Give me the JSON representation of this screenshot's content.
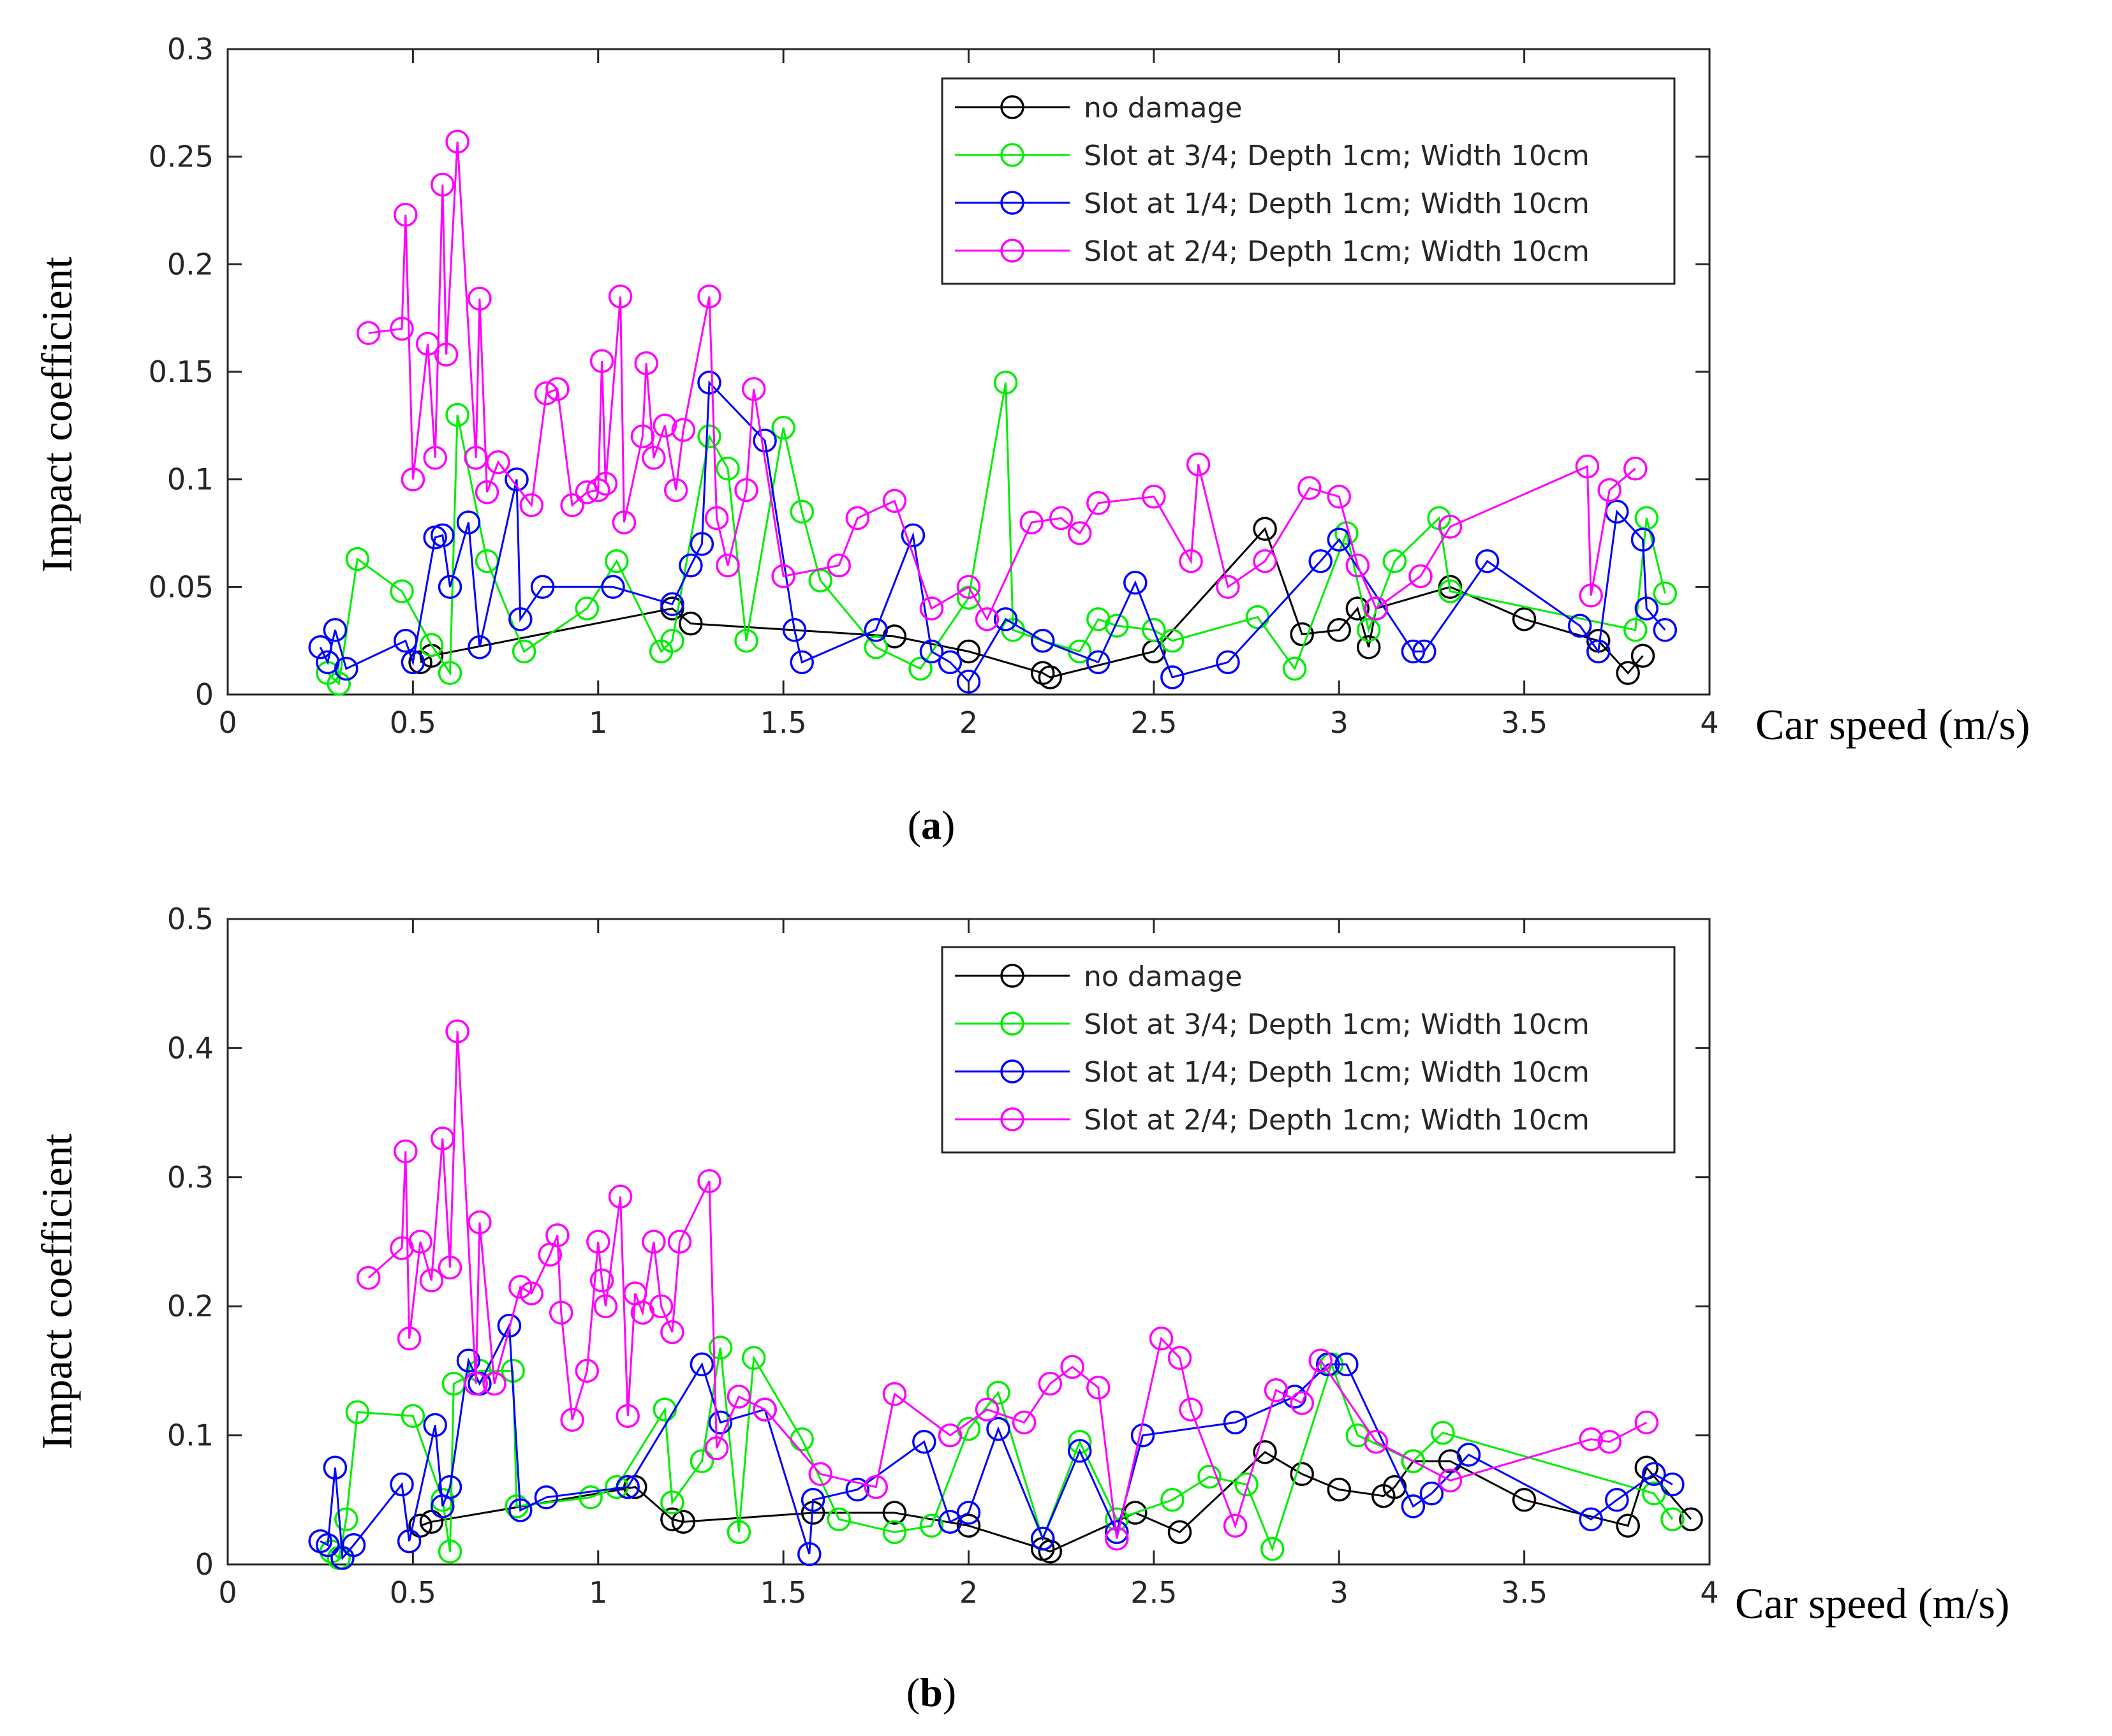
{
  "chart_data": [
    {
      "type": "line",
      "panel_label": "a",
      "xlabel": "Car speed (m/s)",
      "ylabel": "Impact coefficient",
      "xlim": [
        0,
        4
      ],
      "ylim": [
        0,
        0.3
      ],
      "xticks": [
        "0",
        "0.5",
        "1",
        "1.5",
        "2",
        "2.5",
        "3",
        "3.5",
        "4"
      ],
      "yticks": [
        "0",
        "0.05",
        "0.1",
        "0.15",
        "0.2",
        "0.25",
        "0.3"
      ],
      "legend_position": "top-right",
      "series": [
        {
          "name": "no damage",
          "color": "#000000",
          "x": [
            0.52,
            0.55,
            1.2,
            1.25,
            1.8,
            2.0,
            2.2,
            2.22,
            2.5,
            2.8,
            2.9,
            3.0,
            3.05,
            3.08,
            3.1,
            3.3,
            3.5,
            3.7,
            3.78,
            3.82
          ],
          "y": [
            0.015,
            0.018,
            0.04,
            0.033,
            0.027,
            0.02,
            0.01,
            0.008,
            0.02,
            0.077,
            0.028,
            0.03,
            0.04,
            0.022,
            0.04,
            0.05,
            0.035,
            0.025,
            0.01,
            0.018
          ]
        },
        {
          "name": "Slot at 3/4; Depth 1cm; Width 10cm",
          "color": "#00ee00",
          "x": [
            0.27,
            0.3,
            0.35,
            0.47,
            0.55,
            0.6,
            0.62,
            0.7,
            0.8,
            0.97,
            1.05,
            1.17,
            1.2,
            1.3,
            1.35,
            1.4,
            1.5,
            1.55,
            1.6,
            1.75,
            1.87,
            2.0,
            2.1,
            2.12,
            2.2,
            2.3,
            2.35,
            2.4,
            2.5,
            2.55,
            2.78,
            2.88,
            3.02,
            3.08,
            3.15,
            3.27,
            3.3,
            3.8,
            3.83,
            3.88
          ],
          "y": [
            0.01,
            0.005,
            0.063,
            0.048,
            0.023,
            0.01,
            0.13,
            0.062,
            0.02,
            0.04,
            0.062,
            0.02,
            0.025,
            0.12,
            0.105,
            0.025,
            0.124,
            0.085,
            0.053,
            0.022,
            0.012,
            0.045,
            0.145,
            0.03,
            0.025,
            0.02,
            0.035,
            0.032,
            0.03,
            0.025,
            0.036,
            0.012,
            0.075,
            0.03,
            0.062,
            0.082,
            0.048,
            0.03,
            0.082,
            0.047
          ]
        },
        {
          "name": "Slot at 1/4; Depth 1cm; Width 10cm",
          "color": "#0000ff",
          "x": [
            0.25,
            0.27,
            0.29,
            0.32,
            0.48,
            0.5,
            0.56,
            0.58,
            0.6,
            0.65,
            0.68,
            0.78,
            0.79,
            0.85,
            1.04,
            1.2,
            1.25,
            1.28,
            1.3,
            1.45,
            1.53,
            1.55,
            1.75,
            1.85,
            1.9,
            1.95,
            2.0,
            2.1,
            2.2,
            2.35,
            2.45,
            2.55,
            2.7,
            2.95,
            3.0,
            3.2,
            3.23,
            3.4,
            3.65,
            3.7,
            3.75,
            3.82,
            3.83,
            3.88
          ],
          "y": [
            0.022,
            0.015,
            0.03,
            0.012,
            0.025,
            0.015,
            0.073,
            0.074,
            0.05,
            0.08,
            0.022,
            0.1,
            0.035,
            0.05,
            0.05,
            0.042,
            0.06,
            0.07,
            0.145,
            0.118,
            0.03,
            0.015,
            0.03,
            0.074,
            0.02,
            0.015,
            0.006,
            0.035,
            0.025,
            0.015,
            0.052,
            0.008,
            0.015,
            0.062,
            0.072,
            0.02,
            0.02,
            0.062,
            0.032,
            0.02,
            0.085,
            0.072,
            0.04,
            0.03
          ]
        },
        {
          "name": "Slot at 2/4; Depth 1cm; Width 10cm",
          "color": "#ff00ff",
          "x": [
            0.38,
            0.47,
            0.48,
            0.5,
            0.54,
            0.56,
            0.58,
            0.59,
            0.62,
            0.67,
            0.68,
            0.7,
            0.73,
            0.82,
            0.86,
            0.89,
            0.93,
            0.97,
            1.0,
            1.01,
            1.02,
            1.06,
            1.07,
            1.12,
            1.13,
            1.15,
            1.18,
            1.21,
            1.23,
            1.3,
            1.32,
            1.35,
            1.4,
            1.42,
            1.5,
            1.65,
            1.7,
            1.8,
            1.9,
            2.0,
            2.05,
            2.17,
            2.25,
            2.3,
            2.35,
            2.5,
            2.6,
            2.62,
            2.7,
            2.8,
            2.92,
            3.0,
            3.05,
            3.1,
            3.22,
            3.3,
            3.67,
            3.68,
            3.73,
            3.8
          ],
          "y": [
            0.168,
            0.17,
            0.223,
            0.1,
            0.163,
            0.11,
            0.237,
            0.158,
            0.257,
            0.11,
            0.184,
            0.094,
            0.108,
            0.088,
            0.14,
            0.142,
            0.088,
            0.094,
            0.095,
            0.155,
            0.098,
            0.185,
            0.08,
            0.12,
            0.154,
            0.11,
            0.125,
            0.095,
            0.123,
            0.185,
            0.082,
            0.06,
            0.095,
            0.142,
            0.055,
            0.06,
            0.082,
            0.09,
            0.04,
            0.05,
            0.035,
            0.08,
            0.082,
            0.075,
            0.089,
            0.092,
            0.062,
            0.107,
            0.05,
            0.062,
            0.096,
            0.092,
            0.06,
            0.04,
            0.055,
            0.078,
            0.106,
            0.046,
            0.095,
            0.105
          ]
        }
      ]
    },
    {
      "type": "line",
      "panel_label": "b",
      "xlabel": "Car speed (m/s)",
      "ylabel": "Impact coefficient",
      "xlim": [
        0,
        4
      ],
      "ylim": [
        0,
        0.5
      ],
      "xticks": [
        "0",
        "0.5",
        "1",
        "1.5",
        "2",
        "2.5",
        "3",
        "3.5",
        "4"
      ],
      "yticks": [
        "0",
        "0.1",
        "0.2",
        "0.3",
        "0.4",
        "0.5"
      ],
      "legend_position": "top-right",
      "series": [
        {
          "name": "no damage",
          "color": "#000000",
          "x": [
            0.52,
            0.55,
            1.1,
            1.2,
            1.23,
            1.58,
            1.8,
            2.0,
            2.2,
            2.22,
            2.45,
            2.57,
            2.8,
            2.9,
            3.0,
            3.12,
            3.15,
            3.2,
            3.3,
            3.5,
            3.78,
            3.83,
            3.95
          ],
          "y": [
            0.03,
            0.033,
            0.06,
            0.035,
            0.033,
            0.04,
            0.04,
            0.03,
            0.012,
            0.01,
            0.04,
            0.025,
            0.087,
            0.07,
            0.058,
            0.053,
            0.06,
            0.08,
            0.08,
            0.05,
            0.03,
            0.075,
            0.035
          ]
        },
        {
          "name": "Slot at 3/4; Depth 1cm; Width 10cm",
          "color": "#00ee00",
          "x": [
            0.28,
            0.3,
            0.32,
            0.35,
            0.5,
            0.58,
            0.6,
            0.61,
            0.68,
            0.77,
            0.78,
            0.98,
            1.05,
            1.18,
            1.2,
            1.28,
            1.33,
            1.38,
            1.42,
            1.55,
            1.65,
            1.8,
            1.9,
            2.0,
            2.08,
            2.2,
            2.3,
            2.4,
            2.55,
            2.65,
            2.75,
            2.82,
            2.98,
            3.05,
            3.2,
            3.28,
            3.85,
            3.9
          ],
          "y": [
            0.01,
            0.005,
            0.035,
            0.118,
            0.115,
            0.05,
            0.01,
            0.14,
            0.15,
            0.15,
            0.045,
            0.052,
            0.06,
            0.12,
            0.048,
            0.08,
            0.168,
            0.025,
            0.16,
            0.097,
            0.035,
            0.025,
            0.03,
            0.105,
            0.133,
            0.02,
            0.095,
            0.035,
            0.05,
            0.068,
            0.062,
            0.012,
            0.155,
            0.1,
            0.08,
            0.102,
            0.055,
            0.035
          ]
        },
        {
          "name": "Slot at 1/4; Depth 1cm; Width 10cm",
          "color": "#0000ff",
          "x": [
            0.25,
            0.27,
            0.29,
            0.31,
            0.34,
            0.47,
            0.49,
            0.56,
            0.58,
            0.6,
            0.65,
            0.68,
            0.76,
            0.79,
            0.86,
            1.08,
            1.28,
            1.33,
            1.45,
            1.57,
            1.58,
            1.7,
            1.88,
            1.95,
            2.0,
            2.08,
            2.2,
            2.3,
            2.4,
            2.47,
            2.72,
            2.88,
            2.97,
            3.02,
            3.2,
            3.25,
            3.35,
            3.68,
            3.75,
            3.85,
            3.9
          ],
          "y": [
            0.018,
            0.015,
            0.075,
            0.005,
            0.015,
            0.062,
            0.018,
            0.108,
            0.045,
            0.06,
            0.158,
            0.14,
            0.185,
            0.042,
            0.052,
            0.06,
            0.155,
            0.11,
            0.12,
            0.008,
            0.05,
            0.058,
            0.095,
            0.033,
            0.04,
            0.105,
            0.02,
            0.088,
            0.025,
            0.1,
            0.11,
            0.13,
            0.155,
            0.155,
            0.045,
            0.055,
            0.085,
            0.035,
            0.05,
            0.07,
            0.062
          ]
        },
        {
          "name": "Slot at 2/4; Depth 1cm; Width 10cm",
          "color": "#ff00ff",
          "x": [
            0.38,
            0.47,
            0.48,
            0.49,
            0.52,
            0.55,
            0.58,
            0.6,
            0.62,
            0.67,
            0.68,
            0.72,
            0.79,
            0.82,
            0.87,
            0.89,
            0.9,
            0.93,
            0.97,
            1.0,
            1.01,
            1.02,
            1.06,
            1.08,
            1.1,
            1.12,
            1.15,
            1.17,
            1.2,
            1.22,
            1.3,
            1.32,
            1.38,
            1.45,
            1.6,
            1.75,
            1.8,
            1.95,
            2.05,
            2.15,
            2.22,
            2.28,
            2.35,
            2.4,
            2.52,
            2.57,
            2.6,
            2.72,
            2.83,
            2.9,
            2.95,
            3.1,
            3.3,
            3.68,
            3.73,
            3.83
          ],
          "y": [
            0.222,
            0.245,
            0.32,
            0.175,
            0.25,
            0.22,
            0.33,
            0.23,
            0.413,
            0.14,
            0.265,
            0.14,
            0.215,
            0.21,
            0.24,
            0.255,
            0.195,
            0.112,
            0.15,
            0.25,
            0.22,
            0.2,
            0.285,
            0.115,
            0.21,
            0.195,
            0.25,
            0.2,
            0.18,
            0.25,
            0.297,
            0.09,
            0.13,
            0.12,
            0.07,
            0.06,
            0.132,
            0.1,
            0.12,
            0.11,
            0.14,
            0.153,
            0.137,
            0.02,
            0.175,
            0.16,
            0.12,
            0.03,
            0.135,
            0.125,
            0.158,
            0.095,
            0.065,
            0.097,
            0.095,
            0.11
          ]
        }
      ]
    }
  ]
}
